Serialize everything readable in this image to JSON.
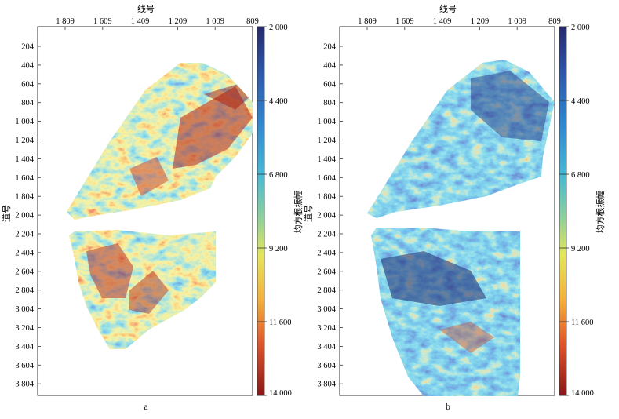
{
  "panels": [
    {
      "caption": "a",
      "x_axis_title": "线号",
      "y_axis_title": "道号",
      "x_ticks": [
        "1 809",
        "1 609",
        "1 409",
        "1 209",
        "1 009",
        "809"
      ],
      "y_ticks": [
        "204",
        "404",
        "604",
        "804",
        "1 004",
        "1 204",
        "1 404",
        "1 604",
        "1 804",
        "2 004",
        "2 204",
        "2 404",
        "2 604",
        "2 804",
        "3 004",
        "3 204",
        "3 404",
        "3 604",
        "3 804"
      ],
      "colorbar_title": "均方根振幅",
      "colorbar_ticks": [
        "2 000",
        "4 400",
        "6 800",
        "9 200",
        "11 600",
        "14 000"
      ]
    },
    {
      "caption": "b",
      "x_axis_title": "线号",
      "y_axis_title": "道号",
      "x_ticks": [
        "1 809",
        "1 609",
        "1 409",
        "1 209",
        "1 009",
        "809"
      ],
      "y_ticks": [
        "204",
        "404",
        "604",
        "804",
        "1 004",
        "1 204",
        "1 404",
        "1 604",
        "1 804",
        "2 004",
        "2 204",
        "2 404",
        "2 604",
        "2 804",
        "3 004",
        "3 204",
        "3 404",
        "3 604",
        "3 804"
      ],
      "colorbar_title": "均方根振幅",
      "colorbar_ticks": [
        "2 000",
        "4 400",
        "6 800",
        "9 200",
        "11 600",
        "14 000"
      ]
    }
  ],
  "colormap": [
    "#2b2f7f",
    "#2f6fc0",
    "#3fb4d9",
    "#7fcfa0",
    "#e8e85a",
    "#f5a83a",
    "#d8432a",
    "#8e1a1a"
  ]
}
